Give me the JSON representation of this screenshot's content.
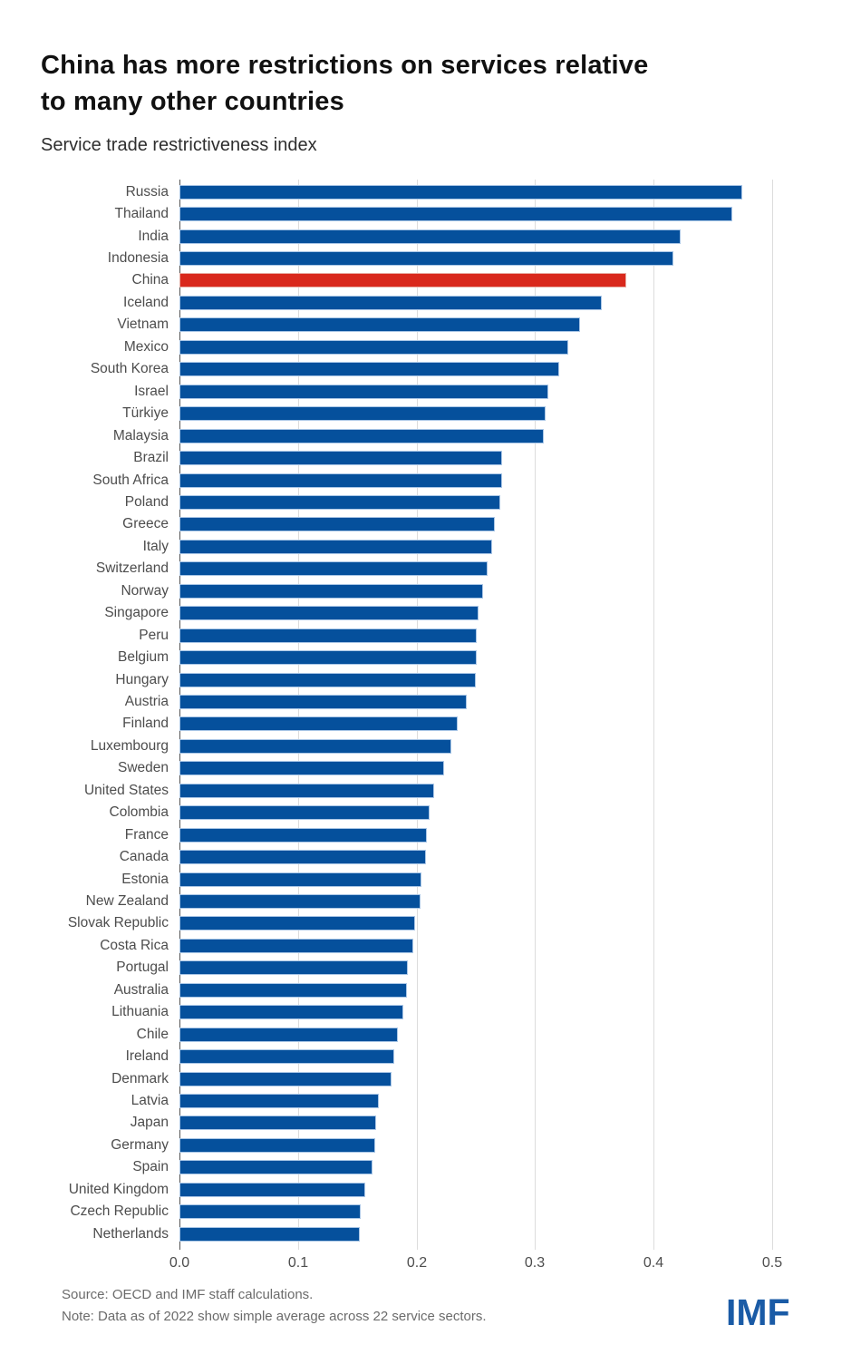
{
  "header": {
    "title_lines": [
      "China has more restrictions on services relative",
      "to many other countries"
    ],
    "subtitle": "Service trade restrictiveness index"
  },
  "chart_data": {
    "type": "bar",
    "orientation": "horizontal",
    "title": "China has more restrictions on services relative to many other countries",
    "subtitle": "Service trade restrictiveness index",
    "xlabel": "",
    "ylabel": "",
    "xlim": [
      0,
      0.5
    ],
    "x_ticks": [
      0.0,
      0.1,
      0.2,
      0.3,
      0.4,
      0.5
    ],
    "x_tick_labels": [
      "0.0",
      "0.1",
      "0.2",
      "0.3",
      "0.4",
      "0.5"
    ],
    "grid": "vertical",
    "legend_position": "none",
    "highlight_category": "China",
    "colors": {
      "bar": "#05509c",
      "bar_edge": "#a9c6e6",
      "highlight": "#d9281c",
      "highlight_edge": "#e7aba2",
      "gridline": "#dcdcdc",
      "zero_axis": "#555555"
    },
    "categories": [
      "Russia",
      "Thailand",
      "India",
      "Indonesia",
      "China",
      "Iceland",
      "Vietnam",
      "Mexico",
      "South Korea",
      "Israel",
      "Türkiye",
      "Malaysia",
      "Brazil",
      "South Africa",
      "Poland",
      "Greece",
      "Italy",
      "Switzerland",
      "Norway",
      "Singapore",
      "Peru",
      "Belgium",
      "Hungary",
      "Austria",
      "Finland",
      "Luxembourg",
      "Sweden",
      "United States",
      "Colombia",
      "France",
      "Canada",
      "Estonia",
      "New Zealand",
      "Slovak Republic",
      "Costa Rica",
      "Portugal",
      "Australia",
      "Lithuania",
      "Chile",
      "Ireland",
      "Denmark",
      "Latvia",
      "Japan",
      "Germany",
      "Spain",
      "United Kingdom",
      "Czech Republic",
      "Netherlands"
    ],
    "values": [
      0.475,
      0.466,
      0.423,
      0.417,
      0.377,
      0.356,
      0.338,
      0.328,
      0.32,
      0.311,
      0.309,
      0.307,
      0.272,
      0.272,
      0.271,
      0.266,
      0.264,
      0.26,
      0.256,
      0.252,
      0.251,
      0.251,
      0.25,
      0.242,
      0.235,
      0.229,
      0.223,
      0.215,
      0.211,
      0.209,
      0.208,
      0.204,
      0.203,
      0.199,
      0.197,
      0.193,
      0.192,
      0.189,
      0.184,
      0.181,
      0.179,
      0.168,
      0.166,
      0.165,
      0.163,
      0.157,
      0.153,
      0.152
    ]
  },
  "footer": {
    "source": "Source: OECD and IMF staff calculations.",
    "note": "Note: Data as of 2022 show simple average across 22 service sectors.",
    "logo": "IMF"
  }
}
